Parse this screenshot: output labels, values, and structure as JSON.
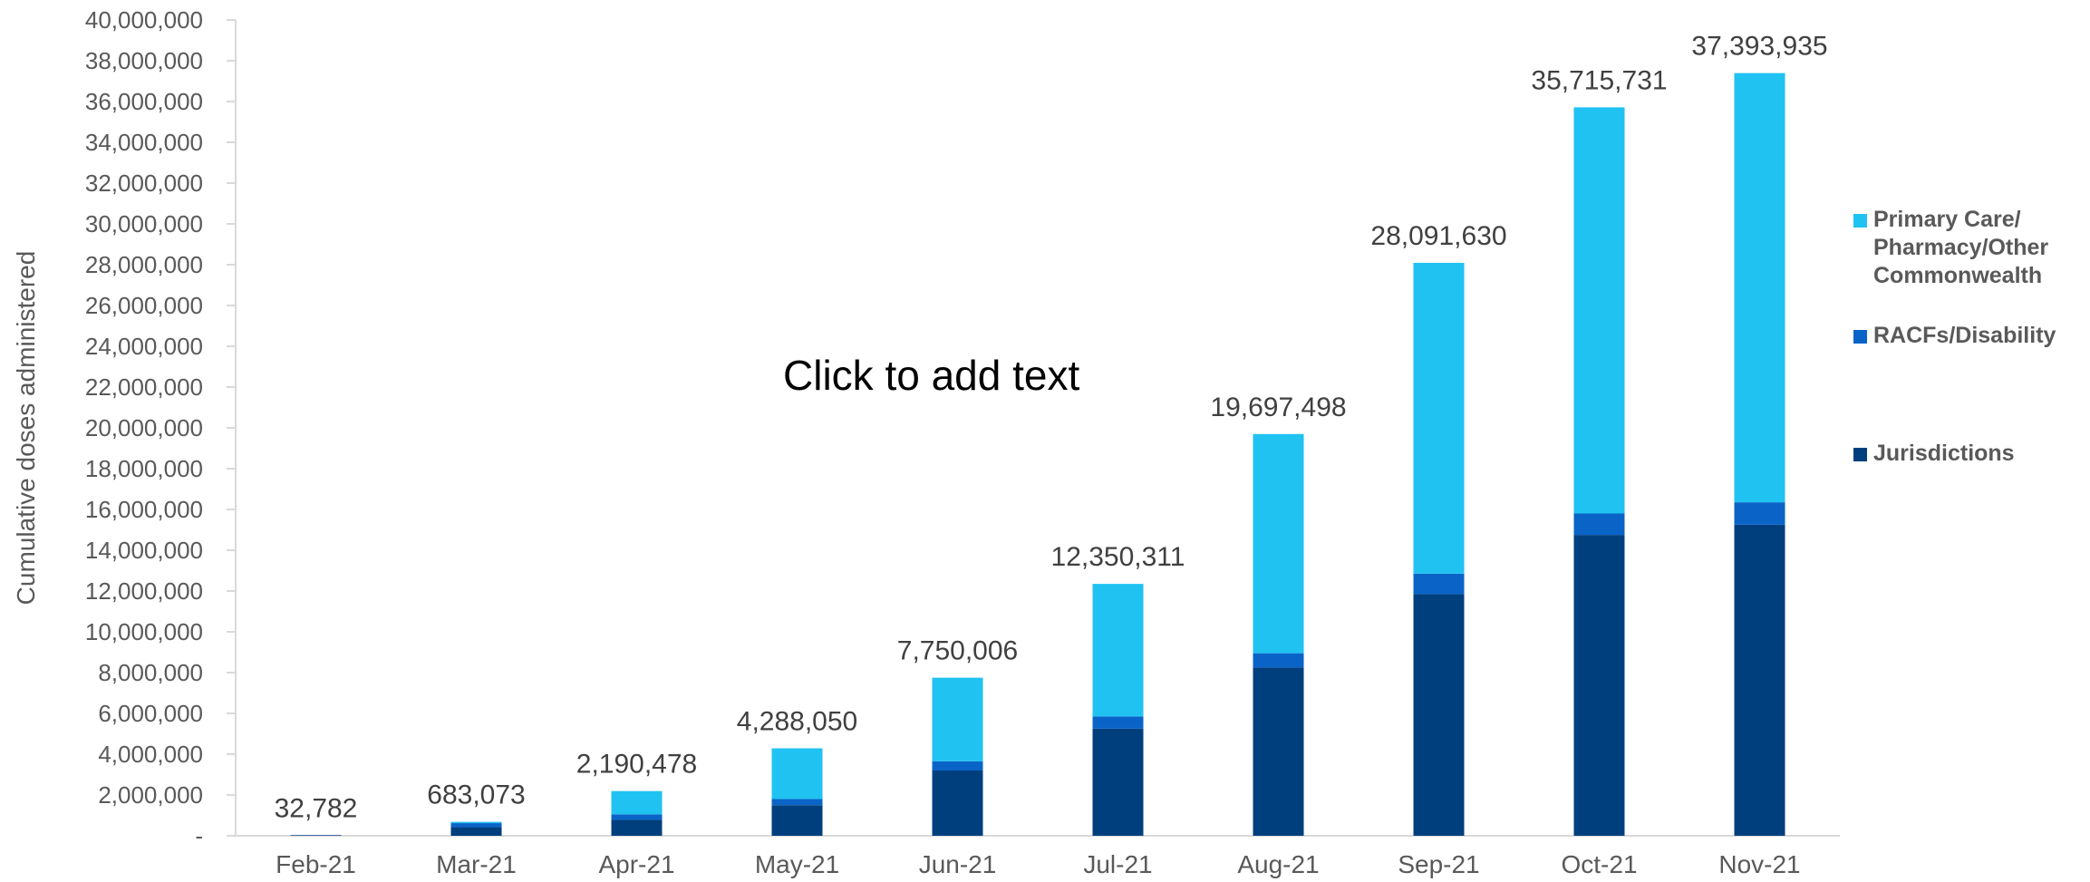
{
  "overlay_text": "Click to add text",
  "chart_data": {
    "type": "bar",
    "stacked": true,
    "title": "",
    "xlabel": "",
    "ylabel": "Cumulative doses administered",
    "ylim": [
      0,
      40000000
    ],
    "ytick_step": 2000000,
    "zero_tick_label": "-",
    "grid": false,
    "legend_position": "right",
    "categories": [
      "Feb-21",
      "Mar-21",
      "Apr-21",
      "May-21",
      "Jun-21",
      "Jul-21",
      "Aug-21",
      "Sep-21",
      "Oct-21",
      "Nov-21"
    ],
    "series": [
      {
        "name": "Jurisdictions",
        "color": "#003F7D",
        "values": [
          25000,
          420000,
          780000,
          1500000,
          3200000,
          5250000,
          8250000,
          11850000,
          14750000,
          15250000
        ]
      },
      {
        "name": "RACFs/Disability",
        "color": "#0A64C8",
        "values": [
          7782,
          200000,
          270000,
          300000,
          450000,
          600000,
          700000,
          1000000,
          1050000,
          1100000
        ]
      },
      {
        "name": "Primary Care/ Pharmacy/Other Commonwealth",
        "color": "#20C2F2",
        "values": [
          0,
          63073,
          1140478,
          2488050,
          4100006,
          6500311,
          10747498,
          15241630,
          19915731,
          21043935
        ]
      }
    ],
    "totals": [
      32782,
      683073,
      2190478,
      4288050,
      7750006,
      12350311,
      19697498,
      28091630,
      35715731,
      37393935
    ],
    "total_labels": [
      "32,782",
      "683,073",
      "2,190,478",
      "4,288,050",
      "7,750,006",
      "12,350,311",
      "19,697,498",
      "28,091,630",
      "35,715,731",
      "37,393,935"
    ],
    "legend": [
      {
        "lines": [
          "Primary Care/",
          "Pharmacy/Other",
          "Commonwealth"
        ],
        "color": "#20C2F2"
      },
      {
        "lines": [
          "RACFs/Disability"
        ],
        "color": "#0A64C8"
      },
      {
        "lines": [
          "Jurisdictions"
        ],
        "color": "#003F7D"
      }
    ]
  }
}
